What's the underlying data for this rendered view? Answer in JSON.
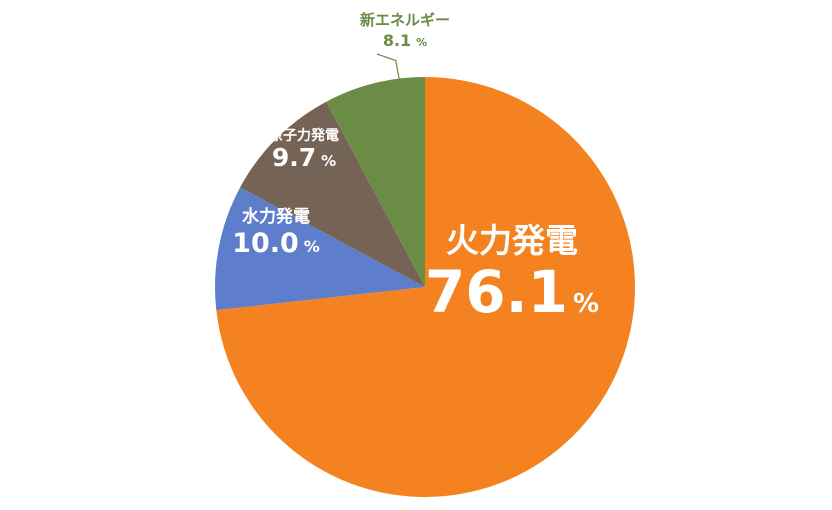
{
  "chart_data": {
    "type": "pie",
    "start_angle_deg": 0,
    "direction": "clockwise",
    "slices": [
      {
        "name": "火力発電",
        "value": 76.1,
        "value_label": "76.1",
        "unit": "%",
        "color": "#F58220"
      },
      {
        "name": "水力発電",
        "value": 10.0,
        "value_label": "10.0",
        "unit": "%",
        "color": "#5E7ECB"
      },
      {
        "name": "原子力発電",
        "value": 9.7,
        "value_label": "9.7",
        "unit": "%",
        "color": "#756356"
      },
      {
        "name": "新エネルギー",
        "value": 8.1,
        "value_label": "8.1",
        "unit": "%",
        "color": "#6A8C45"
      }
    ],
    "label_colors": {
      "inside": "#ffffff",
      "outside": "#6A8C45"
    }
  }
}
